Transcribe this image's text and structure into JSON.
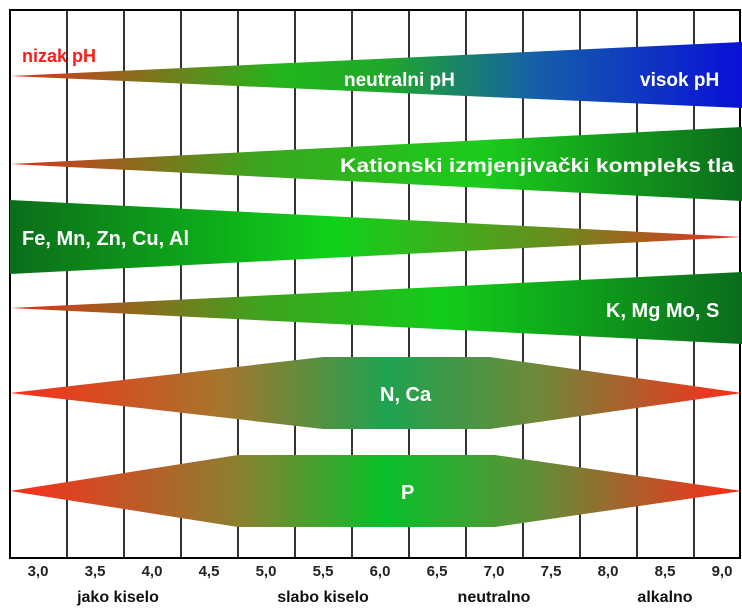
{
  "bands": [
    {
      "id": "ph-scale",
      "labels": [
        "nizak pH",
        "neutralni pH",
        "visok pH"
      ]
    },
    {
      "id": "cation-exchange",
      "labels": [
        "Kationski izmjenjivački kompleks tla"
      ]
    },
    {
      "id": "micronutrients",
      "labels": [
        "Fe, Mn, Zn, Cu, Al"
      ]
    },
    {
      "id": "k-mg-mo-s",
      "labels": [
        "K, Mg Mo, S"
      ]
    },
    {
      "id": "n-ca",
      "labels": [
        "N, Ca"
      ]
    },
    {
      "id": "p",
      "labels": [
        "P"
      ]
    }
  ],
  "axis": {
    "ticks": [
      "3,0",
      "3,5",
      "4,0",
      "4,5",
      "5,0",
      "5,5",
      "6,0",
      "6,5",
      "7,0",
      "7,5",
      "8,0",
      "8,5",
      "9,0"
    ],
    "regions": [
      "jako kiselo",
      "slabo kiselo",
      "neutralno",
      "alkalno"
    ]
  },
  "colors": {
    "red": "#ee2a1e",
    "green": "#00c81a",
    "dark_green": "#0b7a1c",
    "blue": "#1a1fd0",
    "grid": "#000000"
  }
}
